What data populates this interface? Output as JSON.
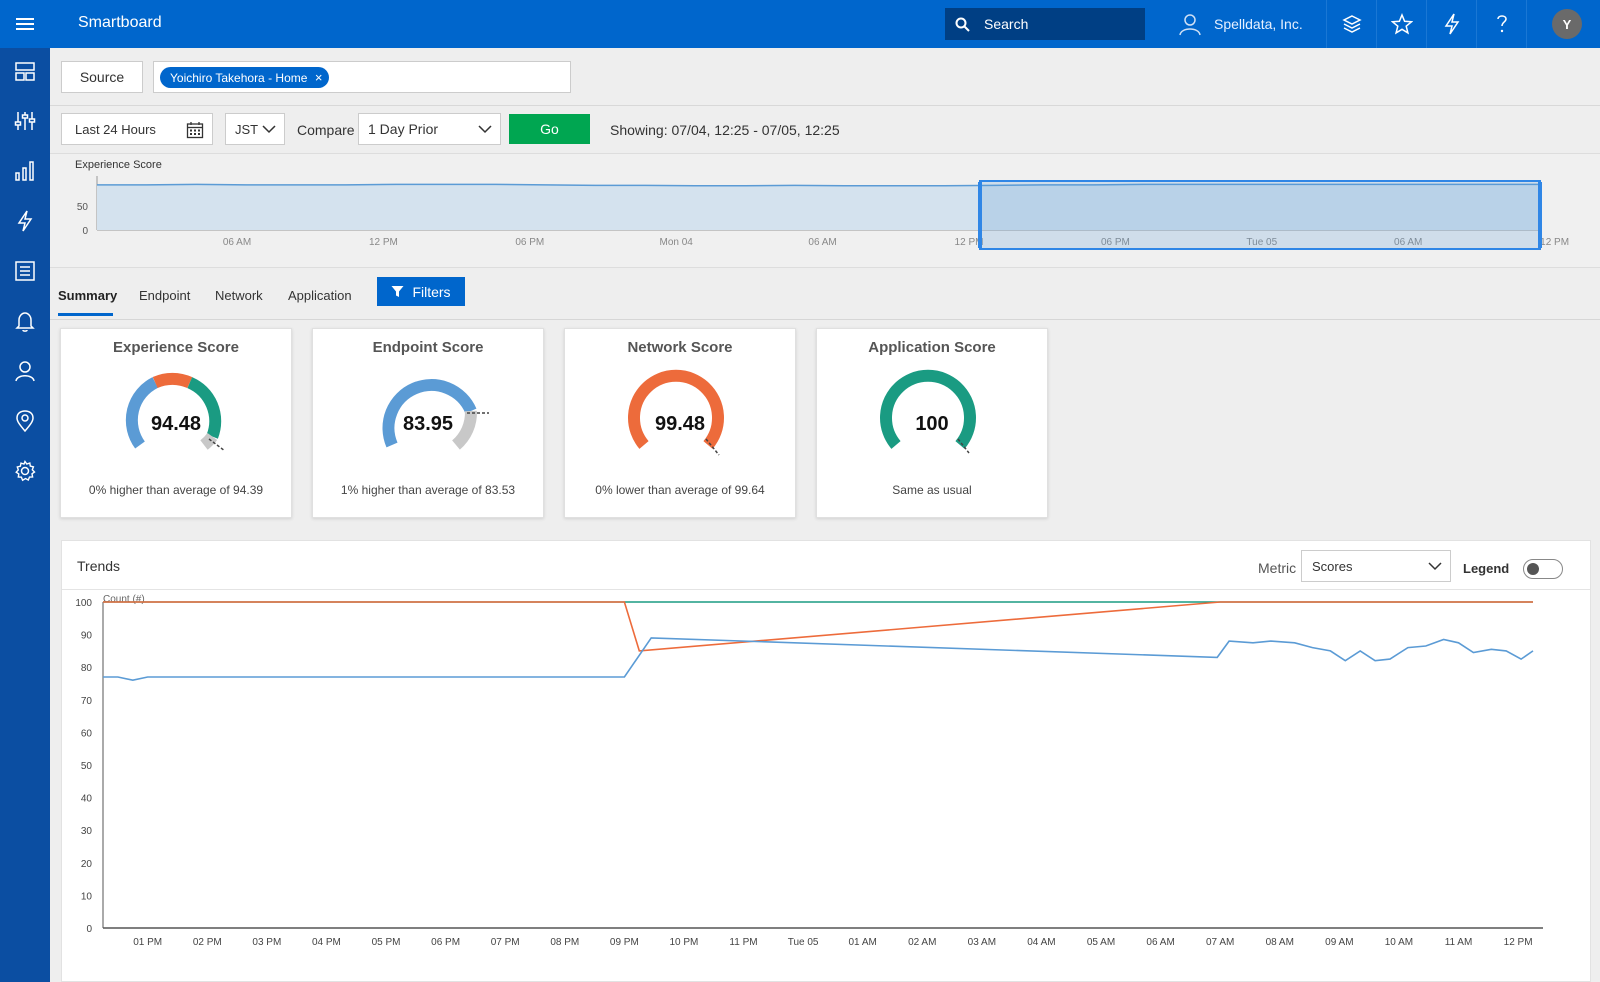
{
  "header": {
    "app_title": "Smartboard",
    "search_label": "Search",
    "org_name": "Spelldata, Inc.",
    "avatar_initial": "Y"
  },
  "source": {
    "button_label": "Source",
    "chip_label": "Yoichiro Takehora - Home",
    "chip_remove": "×"
  },
  "time": {
    "range_label": "Last 24 Hours",
    "timezone": "JST",
    "compare_label": "Compare",
    "compare_value": "1 Day Prior",
    "go_label": "Go",
    "showing_text": "Showing: 07/04, 12:25 - 07/05, 12:25"
  },
  "overview_chart": {
    "title": "Experience Score",
    "y_ticks": [
      "50",
      "0"
    ],
    "x_ticks": [
      "06 AM",
      "12 PM",
      "06 PM",
      "Mon 04",
      "06 AM",
      "12 PM",
      "06 PM",
      "Tue 05",
      "06 AM",
      "12 PM"
    ],
    "values": [
      94,
      94,
      95,
      94,
      94,
      94,
      95,
      95,
      95,
      94,
      93,
      93,
      92,
      92,
      93,
      92,
      92,
      92,
      93,
      94,
      94,
      95,
      95,
      95,
      95,
      95,
      95,
      95,
      95,
      95
    ]
  },
  "tabs": [
    {
      "label": "Summary",
      "active": true
    },
    {
      "label": "Endpoint",
      "active": false
    },
    {
      "label": "Network",
      "active": false
    },
    {
      "label": "Application",
      "active": false
    }
  ],
  "filters_label": "Filters",
  "score_cards": [
    {
      "title": "Experience Score",
      "value": "94.48",
      "subtitle": "0% higher than average of 94.39"
    },
    {
      "title": "Endpoint Score",
      "value": "83.95",
      "subtitle": "1% higher than average of 83.53"
    },
    {
      "title": "Network Score",
      "value": "99.48",
      "subtitle": "0% lower than average of 99.64"
    },
    {
      "title": "Application Score",
      "value": "100",
      "subtitle": "Same as usual"
    }
  ],
  "colors": {
    "primary": "#0066cc",
    "sidebar": "#0b4ea2",
    "go": "#00a651",
    "blue_series": "#5b9bd5",
    "orange_series": "#ed6b3b",
    "green_series": "#1a9b82",
    "gauge_gray": "#c8c8c8"
  },
  "trends": {
    "title": "Trends",
    "metric_label": "Metric",
    "metric_value": "Scores",
    "legend_label": "Legend"
  },
  "chart_data": {
    "type": "line",
    "ylabel": "Count (#)",
    "ylim": [
      0,
      100
    ],
    "y_ticks": [
      "100",
      "90",
      "80",
      "70",
      "60",
      "50",
      "40",
      "30",
      "20",
      "10",
      "0"
    ],
    "x_ticks": [
      "01 PM",
      "02 PM",
      "03 PM",
      "04 PM",
      "05 PM",
      "06 PM",
      "07 PM",
      "08 PM",
      "09 PM",
      "10 PM",
      "11 PM",
      "Tue 05",
      "01 AM",
      "02 AM",
      "03 AM",
      "04 AM",
      "05 AM",
      "06 AM",
      "07 AM",
      "08 AM",
      "09 AM",
      "10 AM",
      "11 AM",
      "12 PM"
    ],
    "grid": false,
    "series": [
      {
        "color": "#1a9b82",
        "points": [
          [
            0.0,
            100
          ],
          [
            24.0,
            100
          ]
        ]
      },
      {
        "color": "#ed6b3b",
        "points": [
          [
            0.0,
            100
          ],
          [
            8.75,
            100
          ],
          [
            9.0,
            85
          ],
          [
            18.75,
            100
          ],
          [
            24.0,
            100
          ]
        ]
      },
      {
        "color": "#5b9bd5",
        "points": [
          [
            0.0,
            77
          ],
          [
            0.25,
            77
          ],
          [
            0.5,
            76
          ],
          [
            0.75,
            77
          ],
          [
            1.25,
            77
          ],
          [
            8.75,
            77
          ],
          [
            9.2,
            89
          ],
          [
            18.7,
            83
          ],
          [
            18.9,
            88
          ],
          [
            19.3,
            87.5
          ],
          [
            19.6,
            88
          ],
          [
            20.0,
            87.5
          ],
          [
            20.3,
            86
          ],
          [
            20.6,
            85
          ],
          [
            20.85,
            82
          ],
          [
            21.1,
            85
          ],
          [
            21.35,
            82
          ],
          [
            21.6,
            82.5
          ],
          [
            21.9,
            86
          ],
          [
            22.2,
            86.5
          ],
          [
            22.5,
            88.5
          ],
          [
            22.75,
            87.5
          ],
          [
            23.0,
            84.5
          ],
          [
            23.3,
            85.5
          ],
          [
            23.55,
            85
          ],
          [
            23.8,
            82.5
          ],
          [
            24.0,
            85
          ]
        ]
      }
    ]
  }
}
